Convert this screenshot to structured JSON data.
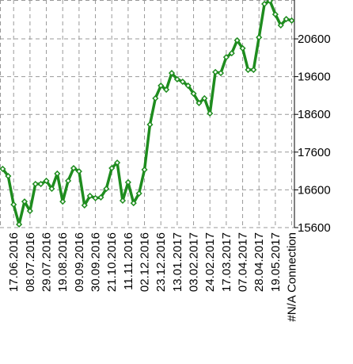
{
  "chart_data": {
    "type": "line",
    "categories": [
      null,
      null,
      "17.06.2016",
      null,
      null,
      "08.07.2016",
      null,
      null,
      "29.07.2016",
      null,
      null,
      "19.08.2016",
      null,
      null,
      "09.09.2016",
      null,
      null,
      "30.09.2016",
      null,
      null,
      "21.10.2016",
      null,
      null,
      "11.11.2016",
      null,
      null,
      "02.12.2016",
      null,
      null,
      "23.12.2016",
      null,
      null,
      "13.01.2017",
      null,
      null,
      "03.02.2017",
      null,
      null,
      "24.02.2017",
      null,
      null,
      "17.03.2017",
      null,
      null,
      "07.04.2017",
      null,
      null,
      "28.04.2017",
      null,
      null,
      "19.05.2017",
      null,
      null,
      "#N/A Connection"
    ],
    "series": [
      {
        "color": "#1e8c1e",
        "values": [
          17155,
          16965,
          16210,
          15685,
          16290,
          16040,
          16755,
          16755,
          16840,
          16630,
          17030,
          16290,
          16840,
          17175,
          17090,
          16190,
          16440,
          16380,
          16400,
          16630,
          17175,
          17320,
          16315,
          16800,
          16250,
          16505,
          17135,
          18330,
          19025,
          19360,
          19255,
          19695,
          19530,
          19465,
          19360,
          19150,
          18900,
          19025,
          18625,
          19720,
          19695,
          20115,
          20220,
          20560,
          20350,
          19780,
          19780,
          20640,
          21525,
          21610,
          21250,
          20960,
          21125,
          21085
        ]
      }
    ],
    "ylim": [
      15600,
      21630
    ],
    "yticks": [
      15600,
      16600,
      17600,
      18600,
      19600,
      20600
    ],
    "grid": true
  }
}
